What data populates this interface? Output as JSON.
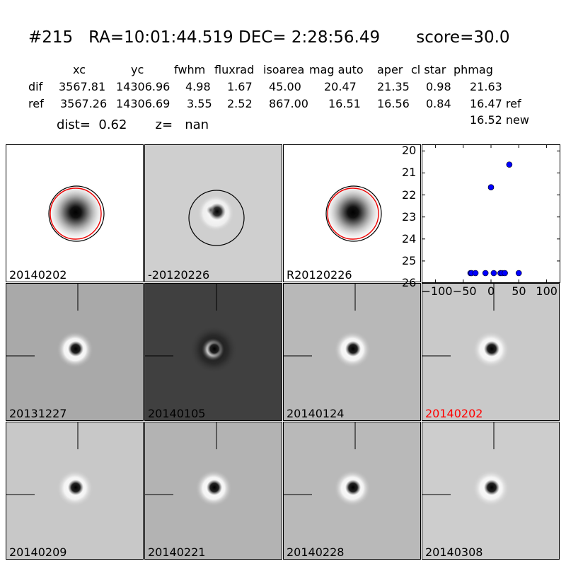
{
  "header": {
    "title": "#215   RA=10:01:44.519 DEC= 2:28:56.49       score=30.0",
    "columns": [
      "xc",
      "yc",
      "fwhm",
      "fluxrad",
      "isoarea",
      "mag auto",
      "aper",
      "cl star",
      "phmag"
    ],
    "rows": [
      {
        "label": "dif",
        "values": [
          "3567.81",
          "14306.96",
          "4.98",
          "1.67",
          "45.00",
          "20.47",
          "21.35",
          "0.98",
          "21.63"
        ]
      },
      {
        "label": "ref",
        "values": [
          "3567.26",
          "14306.69",
          "3.55",
          "2.52",
          "867.00",
          "16.51",
          "16.56",
          "0.84",
          "16.47 ref"
        ]
      }
    ],
    "extra_phmag": "16.52 new",
    "dist_line": "dist=  0.62       z=   nan"
  },
  "panels_top": [
    {
      "label": "20140202",
      "bg": "#ffffff"
    },
    {
      "label": "-20120226",
      "bg": "#cfcfcf"
    },
    {
      "label": "R20120226",
      "bg": "#ffffff"
    }
  ],
  "panels_grid": [
    {
      "label": "20131227",
      "bg": "#a9a9a9",
      "highlight": false
    },
    {
      "label": "20140105",
      "bg": "#404040",
      "highlight": false
    },
    {
      "label": "20140124",
      "bg": "#b8b8b8",
      "highlight": false
    },
    {
      "label": "20140202",
      "bg": "#c9c9c9",
      "highlight": true
    },
    {
      "label": "20140209",
      "bg": "#c8c8c8",
      "highlight": false
    },
    {
      "label": "20140221",
      "bg": "#b3b3b3",
      "highlight": false
    },
    {
      "label": "20140228",
      "bg": "#b9b9b9",
      "highlight": false
    },
    {
      "label": "20140308",
      "bg": "#cdcdcd",
      "highlight": false
    }
  ],
  "chart_data": {
    "type": "scatter",
    "xlim": [
      -125,
      125
    ],
    "ylim": [
      26,
      19.7
    ],
    "xticks": [
      -100,
      -50,
      0,
      50,
      100
    ],
    "xtick_labels": [
      "−100",
      "−50",
      "0",
      "50",
      "100"
    ],
    "yticks": [
      20,
      21,
      22,
      23,
      24,
      25,
      26
    ],
    "ytick_labels": [
      "20",
      "21",
      "22",
      "23",
      "24",
      "25",
      "26"
    ],
    "points": [
      {
        "x": -37,
        "y": 25.55
      },
      {
        "x": -35,
        "y": 25.55
      },
      {
        "x": -28,
        "y": 25.55
      },
      {
        "x": -10,
        "y": 25.55
      },
      {
        "x": 5,
        "y": 25.55
      },
      {
        "x": 17,
        "y": 25.55
      },
      {
        "x": 20,
        "y": 25.55
      },
      {
        "x": 25,
        "y": 25.55
      },
      {
        "x": 50,
        "y": 25.55
      },
      {
        "x": 0,
        "y": 21.65
      },
      {
        "x": 33,
        "y": 20.62
      }
    ],
    "color": "#0000ff"
  }
}
